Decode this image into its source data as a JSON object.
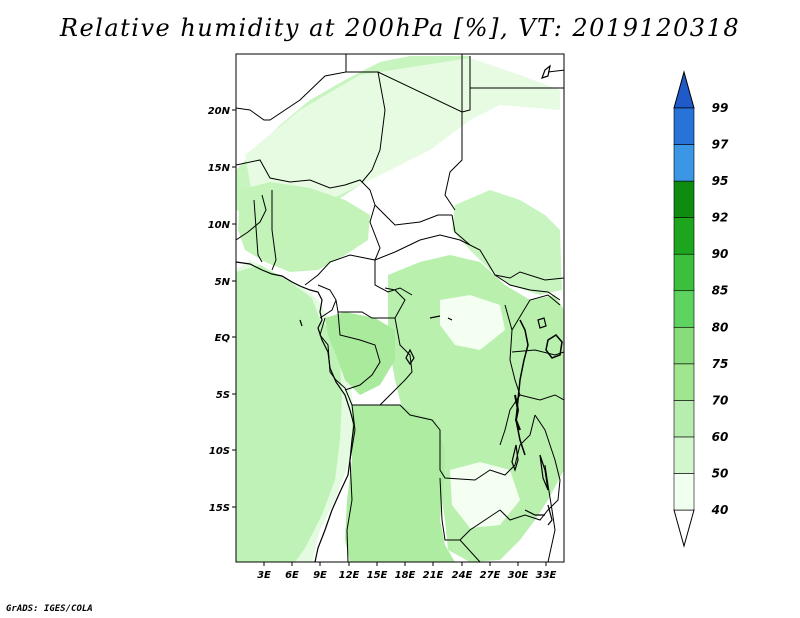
{
  "title": "Relative humidity at 200hPa [%], VT: 2019120318",
  "credit": "GrADS: IGES/COLA",
  "lat_ticks": [
    "20N",
    "15N",
    "10N",
    "5N",
    "EQ",
    "5S",
    "10S",
    "15S"
  ],
  "lon_ticks": [
    "3E",
    "6E",
    "9E",
    "12E",
    "15E",
    "18E",
    "21E",
    "24E",
    "27E",
    "30E",
    "33E"
  ],
  "colorbar": {
    "labels": [
      "40",
      "50",
      "60",
      "70",
      "75",
      "80",
      "85",
      "90",
      "92",
      "95",
      "97",
      "99"
    ],
    "colors": [
      "#f0fff0",
      "#d2f7cd",
      "#b7eeaf",
      "#a0e68f",
      "#89dc7c",
      "#5fd35f",
      "#3cbf3c",
      "#1ea51e",
      "#0f8c0f",
      "#3c96e6",
      "#2873d7",
      "#1e5ac8"
    ]
  }
}
